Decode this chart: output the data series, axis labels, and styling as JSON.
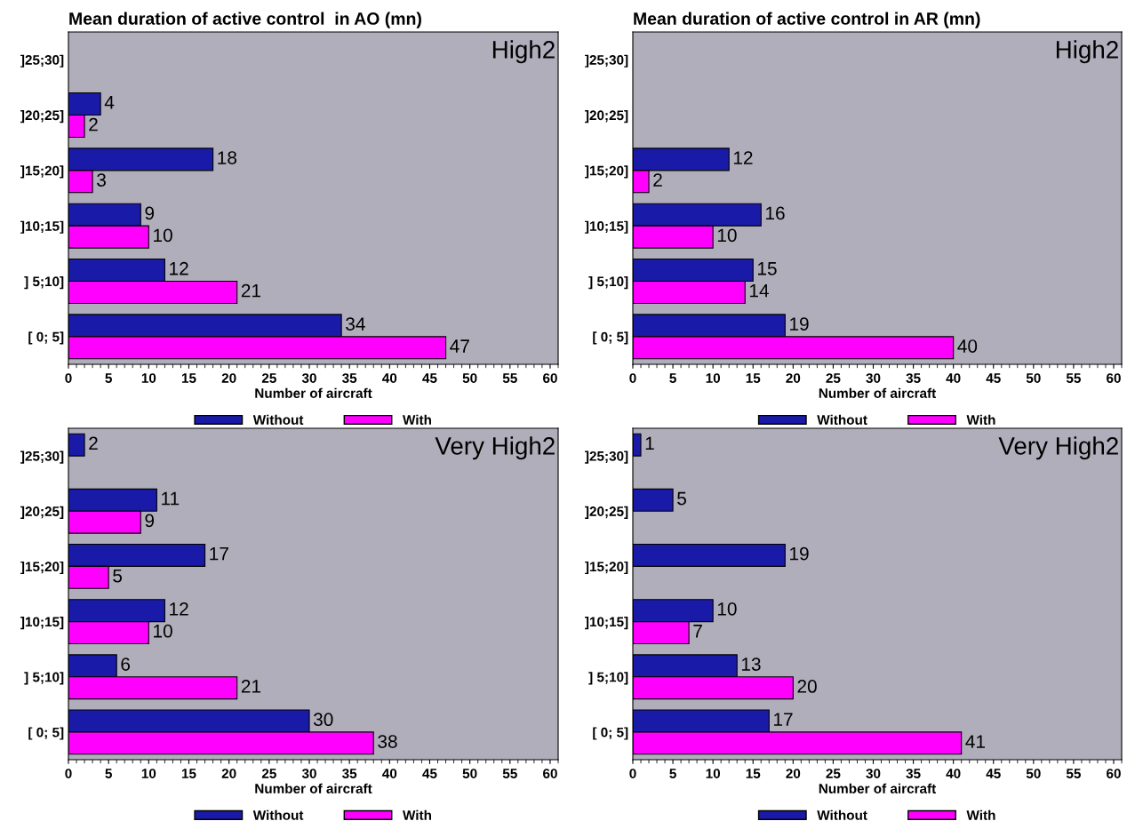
{
  "chart_data": [
    {
      "type": "bar",
      "orientation": "horizontal",
      "title": "Mean duration of active control  in AO (mn)",
      "xlabel": "Number of aircraft",
      "annotations": [
        "High2"
      ],
      "categories": [
        "]25;30]",
        "]20;25]",
        "]15;20]",
        "]10;15]",
        "] 5;10]",
        "[ 0; 5]"
      ],
      "series": [
        {
          "name": "Without",
          "color": "#1a1aa8",
          "values": [
            null,
            4,
            18,
            9,
            12,
            34
          ]
        },
        {
          "name": "With",
          "color": "#ff00ff",
          "values": [
            null,
            2,
            3,
            10,
            21,
            47
          ]
        }
      ],
      "xlim": [
        0,
        61
      ],
      "xticks": [
        0,
        5,
        10,
        15,
        20,
        25,
        30,
        35,
        40,
        45,
        50,
        55,
        60
      ],
      "data_labels": true,
      "legend": "bottom",
      "grid": false
    },
    {
      "type": "bar",
      "orientation": "horizontal",
      "title": "Mean duration of active control in AR (mn)",
      "xlabel": "Number of aircraft",
      "annotations": [
        "High2"
      ],
      "categories": [
        "]25;30]",
        "]20;25]",
        "]15;20]",
        "]10;15]",
        "] 5;10]",
        "[ 0; 5]"
      ],
      "series": [
        {
          "name": "Without",
          "color": "#1a1aa8",
          "values": [
            null,
            null,
            12,
            16,
            15,
            19
          ]
        },
        {
          "name": "With",
          "color": "#ff00ff",
          "values": [
            null,
            null,
            2,
            10,
            14,
            40
          ]
        }
      ],
      "xlim": [
        0,
        61
      ],
      "xticks": [
        0,
        5,
        10,
        15,
        20,
        25,
        30,
        35,
        40,
        45,
        50,
        55,
        60
      ],
      "data_labels": true,
      "legend": "bottom",
      "grid": false
    },
    {
      "type": "bar",
      "orientation": "horizontal",
      "xlabel": "Number of aircraft",
      "annotations": [
        "Very High2"
      ],
      "categories": [
        "]25;30]",
        "]20;25]",
        "]15;20]",
        "]10;15]",
        "] 5;10]",
        "[ 0; 5]"
      ],
      "series": [
        {
          "name": "Without",
          "color": "#1a1aa8",
          "values": [
            2,
            11,
            17,
            12,
            6,
            30
          ]
        },
        {
          "name": "With",
          "color": "#ff00ff",
          "values": [
            null,
            9,
            5,
            10,
            21,
            38
          ]
        }
      ],
      "xlim": [
        0,
        61
      ],
      "xticks": [
        0,
        5,
        10,
        15,
        20,
        25,
        30,
        35,
        40,
        45,
        50,
        55,
        60
      ],
      "data_labels": true,
      "legend": "bottom",
      "grid": false
    },
    {
      "type": "bar",
      "orientation": "horizontal",
      "xlabel": "Number of aircraft",
      "annotations": [
        "Very High2"
      ],
      "categories": [
        "]25;30]",
        "]20;25]",
        "]15;20]",
        "]10;15]",
        "] 5;10]",
        "[ 0; 5]"
      ],
      "series": [
        {
          "name": "Without",
          "color": "#1a1aa8",
          "values": [
            1,
            5,
            19,
            10,
            13,
            17
          ]
        },
        {
          "name": "With",
          "color": "#ff00ff",
          "values": [
            null,
            null,
            null,
            7,
            20,
            41
          ]
        }
      ],
      "xlim": [
        0,
        61
      ],
      "xticks": [
        0,
        5,
        10,
        15,
        20,
        25,
        30,
        35,
        40,
        45,
        50,
        55,
        60
      ],
      "data_labels": true,
      "legend": "bottom",
      "grid": false
    }
  ]
}
